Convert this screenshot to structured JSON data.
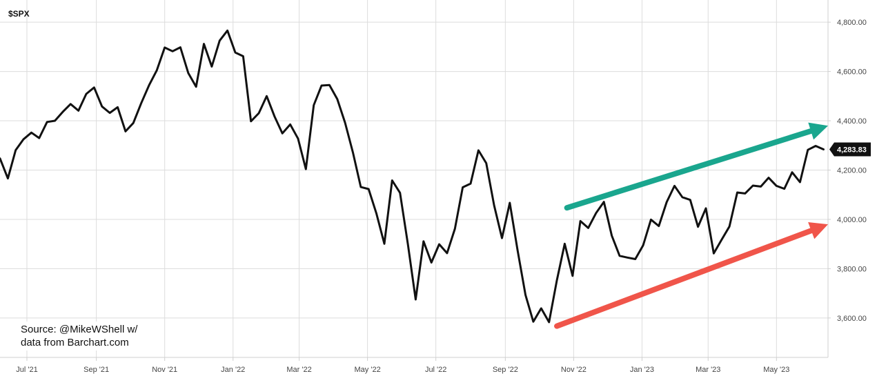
{
  "chart_data": {
    "type": "line",
    "title": "$SPX",
    "xlabel": "",
    "ylabel": "",
    "x_tick_labels": [
      "Jul '21",
      "Sep '21",
      "Nov '21",
      "Jan '22",
      "Mar '22",
      "May '22",
      "Jul '22",
      "Sep '22",
      "Nov '22",
      "Jan '23",
      "Mar '23",
      "May '23"
    ],
    "x_ticks": [
      "2021-07-01",
      "2021-09-01",
      "2021-11-01",
      "2022-01-01",
      "2022-03-01",
      "2022-05-01",
      "2022-07-01",
      "2022-09-01",
      "2022-11-01",
      "2023-01-01",
      "2023-03-01",
      "2023-05-01"
    ],
    "xlim": [
      "2021-06-07",
      "2023-06-16"
    ],
    "y_tick_labels": [
      "3,600.00",
      "3,800.00",
      "4,000.00",
      "4,200.00",
      "4,400.00",
      "4,600.00",
      "4,800.00"
    ],
    "y_ticks": [
      3600,
      3800,
      4000,
      4200,
      4400,
      4600,
      4800
    ],
    "ylim": [
      3440,
      4890
    ],
    "grid": true,
    "axis_position": "right",
    "last_value_label": "4,283.83",
    "last_value": 4283.83,
    "series": [
      {
        "color": "#111111",
        "x": [
          "2021-06-07",
          "2021-06-14",
          "2021-06-21",
          "2021-06-28",
          "2021-07-05",
          "2021-07-12",
          "2021-07-19",
          "2021-07-26",
          "2021-08-02",
          "2021-08-09",
          "2021-08-16",
          "2021-08-23",
          "2021-08-30",
          "2021-09-06",
          "2021-09-13",
          "2021-09-20",
          "2021-09-27",
          "2021-10-04",
          "2021-10-11",
          "2021-10-18",
          "2021-10-25",
          "2021-11-01",
          "2021-11-08",
          "2021-11-15",
          "2021-11-22",
          "2021-11-29",
          "2021-12-06",
          "2021-12-13",
          "2021-12-20",
          "2021-12-27",
          "2022-01-03",
          "2022-01-10",
          "2022-01-17",
          "2022-01-24",
          "2022-01-31",
          "2022-02-07",
          "2022-02-14",
          "2022-02-21",
          "2022-02-28",
          "2022-03-07",
          "2022-03-14",
          "2022-03-21",
          "2022-03-28",
          "2022-04-04",
          "2022-04-11",
          "2022-04-18",
          "2022-04-25",
          "2022-05-02",
          "2022-05-09",
          "2022-05-16",
          "2022-05-23",
          "2022-05-30",
          "2022-06-06",
          "2022-06-13",
          "2022-06-20",
          "2022-06-27",
          "2022-07-04",
          "2022-07-11",
          "2022-07-18",
          "2022-07-25",
          "2022-08-01",
          "2022-08-08",
          "2022-08-15",
          "2022-08-22",
          "2022-08-29",
          "2022-09-05",
          "2022-09-12",
          "2022-09-19",
          "2022-09-26",
          "2022-10-03",
          "2022-10-10",
          "2022-10-17",
          "2022-10-24",
          "2022-10-31",
          "2022-11-07",
          "2022-11-14",
          "2022-11-21",
          "2022-11-28",
          "2022-12-05",
          "2022-12-12",
          "2022-12-19",
          "2022-12-26",
          "2023-01-02",
          "2023-01-09",
          "2023-01-16",
          "2023-01-23",
          "2023-01-30",
          "2023-02-06",
          "2023-02-13",
          "2023-02-20",
          "2023-02-27",
          "2023-03-06",
          "2023-03-13",
          "2023-03-20",
          "2023-03-27",
          "2023-04-03",
          "2023-04-10",
          "2023-04-17",
          "2023-04-24",
          "2023-05-01",
          "2023-05-08",
          "2023-05-15",
          "2023-05-22",
          "2023-05-29",
          "2023-06-05",
          "2023-06-12"
        ],
        "values": [
          4247,
          4166,
          4281,
          4325,
          4352,
          4330,
          4395,
          4400,
          4436,
          4468,
          4441,
          4509,
          4535,
          4458,
          4432,
          4455,
          4357,
          4391,
          4471,
          4544,
          4605,
          4697,
          4682,
          4698,
          4594,
          4538,
          4712,
          4620,
          4725,
          4766,
          4677,
          4662,
          4398,
          4431,
          4500,
          4418,
          4349,
          4385,
          4328,
          4204,
          4463,
          4543,
          4545,
          4488,
          4392,
          4271,
          4131,
          4123,
          4023,
          3901,
          4158,
          4108,
          3900,
          3675,
          3911,
          3825,
          3899,
          3863,
          3962,
          4130,
          4145,
          4280,
          4228,
          4057,
          3924,
          4067,
          3873,
          3693,
          3585,
          3639,
          3583,
          3752,
          3901,
          3771,
          3993,
          3965,
          4026,
          4071,
          3934,
          3852,
          3845,
          3839,
          3895,
          3999,
          3973,
          4070,
          4136,
          4090,
          4079,
          3970,
          4045,
          3862,
          3917,
          3971,
          4109,
          4105,
          4137,
          4133,
          4169,
          4136,
          4124,
          4191,
          4151,
          4282,
          4298,
          4283.83
        ]
      }
    ],
    "annotations": [
      {
        "type": "arrow",
        "color": "#1aa68e",
        "from": [
          "2022-10-26",
          4047
        ],
        "to": [
          "2023-06-16",
          4380
        ]
      },
      {
        "type": "arrow",
        "color": "#f0554a",
        "from": [
          "2022-10-17",
          3567
        ],
        "to": [
          "2023-06-16",
          3980
        ]
      }
    ]
  },
  "source_note": {
    "line1": "Source: @MikeWShell w/",
    "line2": "data from Barchart.com"
  }
}
